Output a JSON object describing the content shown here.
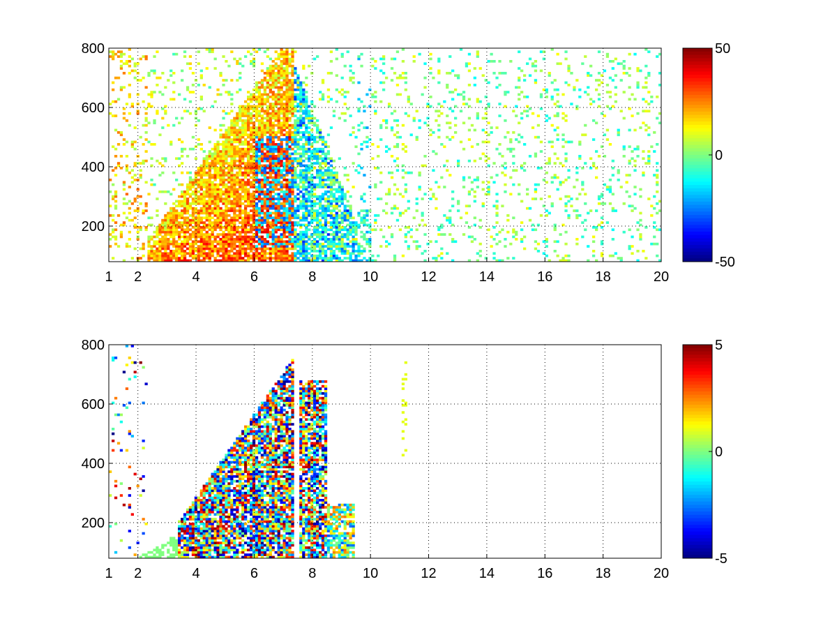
{
  "chart_data": [
    {
      "type": "heatmap",
      "title": "",
      "xlabel": "",
      "ylabel": "",
      "xlim": [
        1,
        20
      ],
      "ylim": [
        80,
        800
      ],
      "x_ticks": [
        1,
        2,
        4,
        6,
        8,
        10,
        12,
        14,
        16,
        18,
        20
      ],
      "y_ticks": [
        200,
        400,
        600,
        800
      ],
      "grid": true,
      "colormap": "jet",
      "colorbar": {
        "range": [
          -50,
          50
        ],
        "ticks": [
          50,
          0,
          -50
        ]
      },
      "missing_values": "white",
      "description_of_values": "scattered cells; high density with values mostly 0 to +50 along a wedge rising from x≈2,y≈80 to x≈7,y≈800; negative values (-10 to -40) concentrated around x 6.5–9, y 100–600; sparse near-zero cells elsewhere up to x=20"
    },
    {
      "type": "heatmap",
      "title": "",
      "xlabel": "",
      "ylabel": "",
      "xlim": [
        1,
        20
      ],
      "ylim": [
        80,
        800
      ],
      "x_ticks": [
        1,
        2,
        4,
        6,
        8,
        10,
        12,
        14,
        16,
        18,
        20
      ],
      "y_ticks": [
        200,
        400,
        600,
        800
      ],
      "grid": true,
      "colormap": "jet",
      "colorbar": {
        "range": [
          -5,
          5
        ],
        "ticks": [
          5,
          0,
          -5
        ]
      },
      "missing_values": "white",
      "description_of_values": "values present mostly in wedge from x≈2,y≈80 to x≈8.4,y≈700 with mixed -5 to +5; isolated cells near x=11.1 around y 410–740; sparse streaks near x 1–2.2"
    }
  ],
  "colors": {
    "background": "#ffffff",
    "axes": "#000000",
    "grid": "#000000"
  }
}
